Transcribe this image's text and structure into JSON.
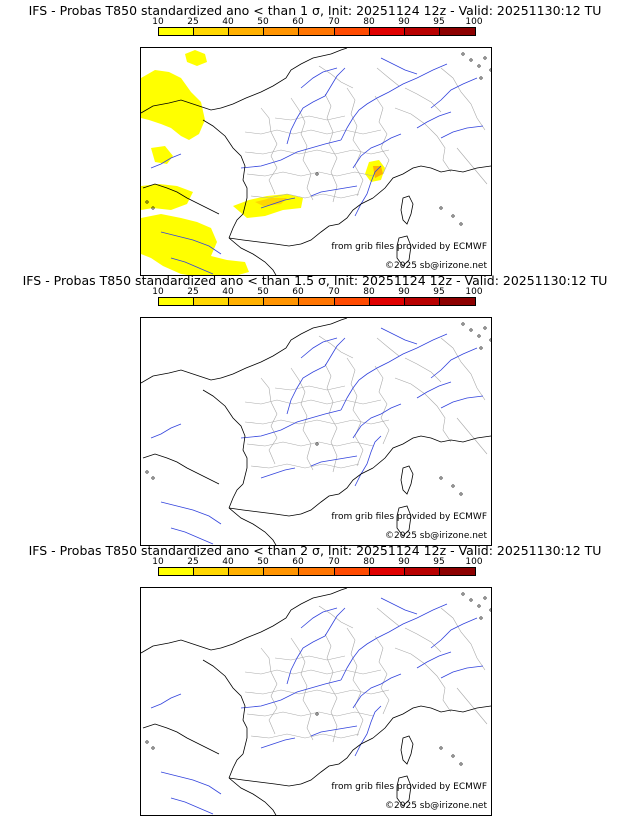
{
  "colorbar": {
    "labels": [
      "10",
      "25",
      "40",
      "50",
      "60",
      "70",
      "80",
      "90",
      "95",
      "100"
    ],
    "colors": [
      "#ffff00",
      "#ffd700",
      "#ffb000",
      "#ff9400",
      "#ff7400",
      "#ff4a00",
      "#e00000",
      "#b80000",
      "#8c0000",
      "#5a0000"
    ]
  },
  "colors": {
    "river": "#3344dd",
    "border": "#aaaaaa",
    "coast": "#000000",
    "highlight": "#ffff00"
  },
  "panels": [
    {
      "title": "IFS - Probas T850  standardized ano < than 1 σ, Init: 20251124 12z - Valid: 20251130:12 TU",
      "credit": "from grib files provided by ECMWF",
      "copyright": "©2025 sb@irizone.net",
      "has_highlight": true
    },
    {
      "title": "IFS - Probas T850  standardized ano < than 1.5 σ, Init: 20251124 12z - Valid: 20251130:12 TU",
      "credit": "from grib files provided by ECMWF",
      "copyright": "©2025 sb@irizone.net",
      "has_highlight": false
    },
    {
      "title": "IFS - Probas T850  standardized ano < than 2 σ, Init: 20251124 12z - Valid: 20251130:12 TU",
      "credit": "from grib files provided by ECMWF",
      "copyright": "©2025 sb@irizone.net",
      "has_highlight": false
    }
  ]
}
